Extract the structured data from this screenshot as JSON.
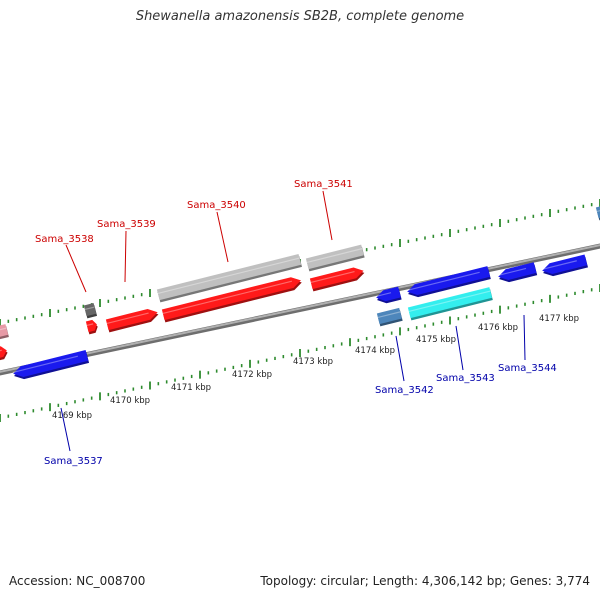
{
  "title": "Shewanella amazonensis SB2B, complete genome",
  "footer": {
    "accession": "Accession: NC_008700",
    "summary": "Topology: circular; Length: 4,306,142 bp; Genes: 3,774"
  },
  "colors": {
    "background": "#ffffff",
    "backbone": "#8c8c8c",
    "forward_cds": "#ff1a1a",
    "reverse_cds": "#1a1aee",
    "forward_other": "#c0c0c0",
    "reverse_selected": "#33eeee",
    "reverse_other": "#4d86bb",
    "tick": "#2e8b2e",
    "forward_label": "#cc0000",
    "reverse_label": "#0000aa"
  },
  "scale_labels": [
    "4169 kbp",
    "4170 kbp",
    "4171 kbp",
    "4172 kbp",
    "4173 kbp",
    "4174 kbp",
    "4175 kbp",
    "4176 kbp",
    "4177 kbp"
  ],
  "gene_labels": {
    "forward": [
      "Sama_3538",
      "Sama_3539",
      "Sama_3540",
      "Sama_3541"
    ],
    "reverse": [
      "Sama_3537",
      "Sama_3542",
      "Sama_3543",
      "Sama_3544"
    ]
  }
}
